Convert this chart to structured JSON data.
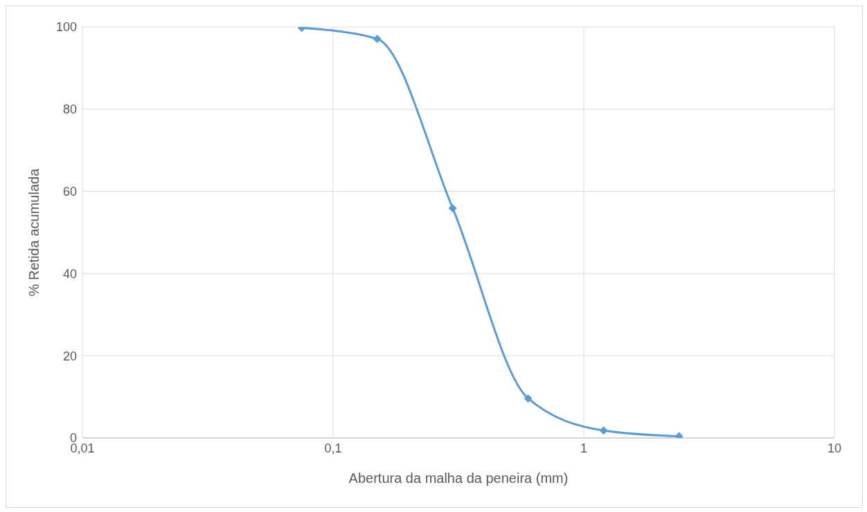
{
  "chart_data": {
    "type": "line",
    "xlabel": "Abertura da malha da peneira (mm)",
    "ylabel": "% Retida acumulada",
    "x": [
      0.075,
      0.15,
      0.3,
      0.6,
      1.2,
      2.4
    ],
    "series": [
      {
        "color": "#5b9bd5",
        "values": [
          99.8,
          97.1,
          55.9,
          9.6,
          1.8,
          0.4
        ]
      }
    ],
    "log": "x",
    "xlim": [
      0.01,
      10
    ],
    "xticks": [
      {
        "value": 0.01,
        "label": "0,01"
      },
      {
        "value": 0.1,
        "label": "0,1"
      },
      1,
      10
    ],
    "ylim": [
      0,
      100
    ],
    "yticks": [
      0,
      20,
      40,
      60,
      80,
      100
    ],
    "grid": true,
    "legend": false,
    "marker": "diamond",
    "line_style": "solid"
  }
}
